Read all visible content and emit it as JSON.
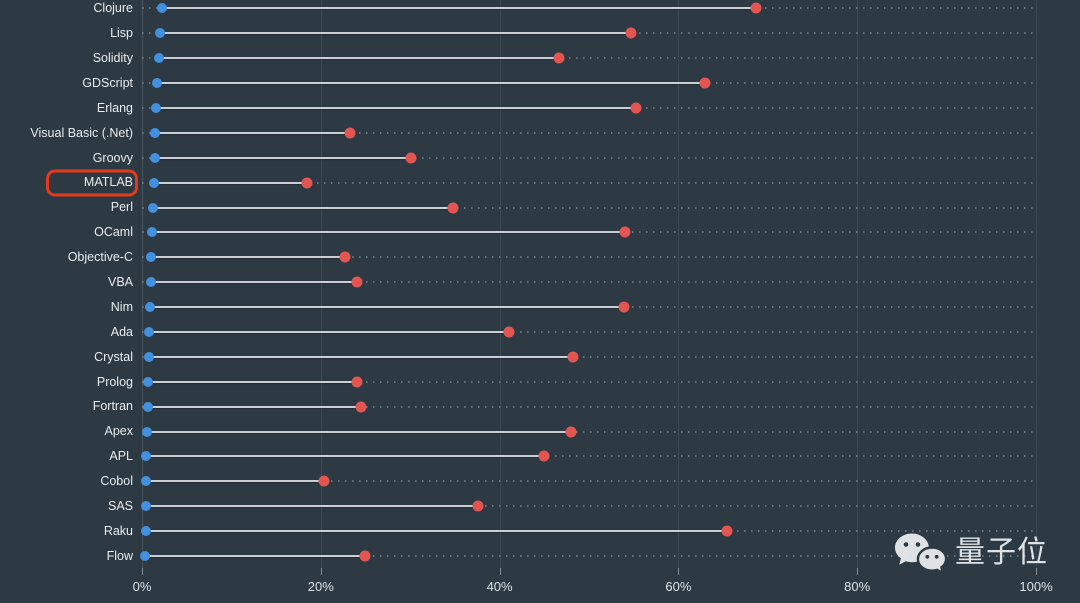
{
  "page": {
    "background": "#2d3a44"
  },
  "chart_data": {
    "type": "dumbbell",
    "orientation": "horizontal",
    "grid": "vertical",
    "xlim": [
      0,
      100
    ],
    "x_tick_values": [
      0,
      20,
      40,
      60,
      80,
      100
    ],
    "x_tick_labels": [
      "0%",
      "20%",
      "40%",
      "60%",
      "80%",
      "100%"
    ],
    "categories": [
      "Clojure",
      "Lisp",
      "Solidity",
      "GDScript",
      "Erlang",
      "Visual Basic (.Net)",
      "Groovy",
      "MATLAB",
      "Perl",
      "OCaml",
      "Objective-C",
      "VBA",
      "Nim",
      "Ada",
      "Crystal",
      "Prolog",
      "Fortran",
      "Apex",
      "APL",
      "Cobol",
      "SAS",
      "Raku",
      "Flow"
    ],
    "series": [
      {
        "name": "blue-dot",
        "color": "#4290e0",
        "values": [
          2.2,
          2.0,
          1.9,
          1.7,
          1.6,
          1.5,
          1.4,
          1.3,
          1.2,
          1.1,
          1.0,
          1.0,
          0.9,
          0.8,
          0.8,
          0.7,
          0.7,
          0.6,
          0.5,
          0.5,
          0.4,
          0.4,
          0.3
        ]
      },
      {
        "name": "red-dot",
        "color": "#e25551",
        "values": [
          68.7,
          54.7,
          46.6,
          63.0,
          55.3,
          23.3,
          30.1,
          18.5,
          34.8,
          54.0,
          22.7,
          24.0,
          53.9,
          41.0,
          48.2,
          24.1,
          24.5,
          48.0,
          45.0,
          20.4,
          37.6,
          65.4,
          24.9
        ]
      }
    ]
  },
  "annotation": {
    "highlighted_category": "MATLAB",
    "box_color": "#e5391c"
  },
  "watermark": {
    "icon": "wechat-icon",
    "text": "量子位"
  }
}
